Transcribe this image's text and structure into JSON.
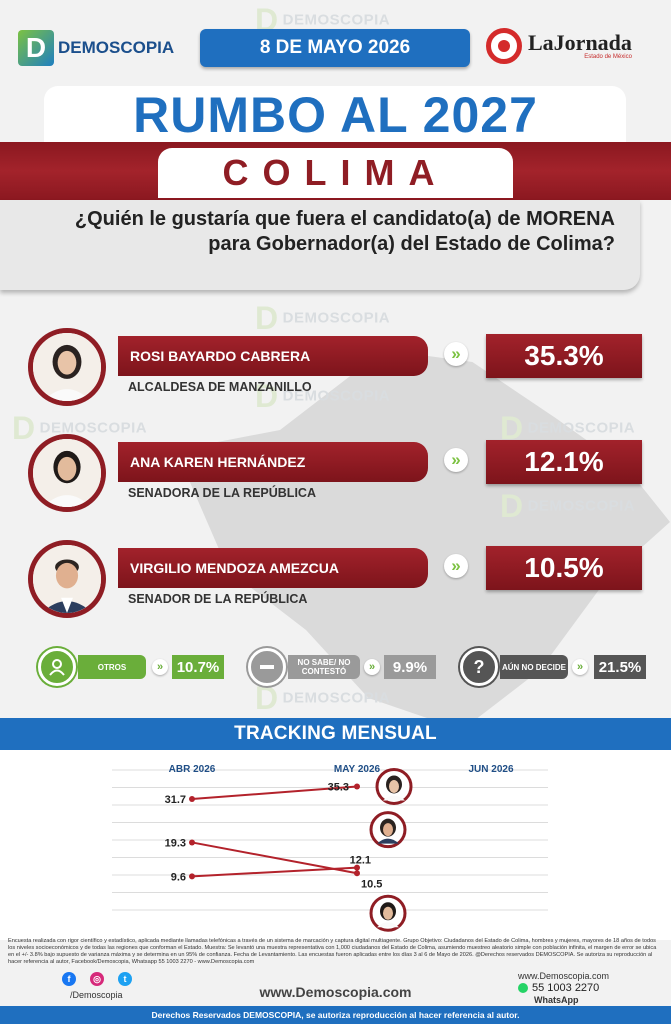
{
  "header": {
    "logo_left_text": "DEMOSCOPIA",
    "date": "8 DE MAYO 2026",
    "logo_right_text": "LaJornada",
    "logo_right_sub": "Estado de México",
    "title": "RUMBO AL 2027",
    "state": "COLIMA",
    "question": "¿Quién le gustaría que fuera el candidato(a) de MORENA para Gobernador(a) del Estado de Colima?"
  },
  "watermark": "DEMOSCOPIA",
  "candidates": [
    {
      "name": "ROSI BAYARDO CABRERA",
      "role": "ALCALDESA DE MANZANILLO",
      "pct": "35.3%"
    },
    {
      "name": "ANA KAREN HERNÁNDEZ",
      "role": "SENADORA DE LA REPÚBLICA",
      "pct": "12.1%"
    },
    {
      "name": "VIRGILIO MENDOZA AMEZCUA",
      "role": "SENADOR DE LA REPÚBLICA",
      "pct": "10.5%"
    }
  ],
  "others": [
    {
      "label": "OTROS",
      "value": "10.7%",
      "color": "#6aae3a"
    },
    {
      "label": "NO SABE/ NO CONTESTÓ",
      "value": "9.9%",
      "color": "#9a9a9a"
    },
    {
      "label": "AÚN NO DECIDE",
      "value": "21.5%",
      "color": "#555555"
    }
  ],
  "tracking": {
    "title": "TRACKING MENSUAL"
  },
  "chart_data": {
    "type": "line",
    "title": "TRACKING MENSUAL",
    "categories": [
      "ABR 2026",
      "MAY 2026",
      "JUN 2026"
    ],
    "series": [
      {
        "values": [
          31.7,
          35.3,
          null
        ]
      },
      {
        "values": [
          19.3,
          10.5,
          null
        ]
      },
      {
        "values": [
          9.6,
          12.1,
          null
        ]
      }
    ],
    "ylim": [
      0,
      40
    ],
    "grid": true,
    "line_color": "#b3222b"
  },
  "footer": {
    "fineprint": "Encuesta realizada con rigor científico y estadístico, aplicada mediante llamadas telefónicas a través de un sistema de marcación y captura digital multiagente. Grupo Objetivo: Ciudadanos del Estado de Colima, hombres y mujeres, mayores de 18 años de todos los niveles socioeconómicos y de todas las regiones que conforman el Estado. Muestra: Se levantó una muestra representativa con 1,000 ciudadanos del Estado de Colima, asumiendo muestreo aleatorio simple con población infinita, el margen de error se ubica en el +/- 3.8% bajo supuesto de varianza máxima y se determina en un 95% de confianza. Fecha de Levantamiento. Las encuestas fueron aplicadas entre los días 3 al 6 de Mayo de 2026. @Derechos reservados DEMOSCOPIA. Se autoriza su reproducción al hacer referencia al autor, Facebook/Demoscopia, Whatsapp 55 1003 2270 - www.Demoscopia.com",
    "handle": "/Demoscopia",
    "website": "www.Demoscopia.com",
    "contact_site": "www.Demoscopia.com",
    "phone": "55 1003 2270",
    "whatsapp": "WhatsApp",
    "rights": "Derechos Reservados DEMOSCOPIA, se autoriza reproducción al hacer referencia al autor."
  }
}
